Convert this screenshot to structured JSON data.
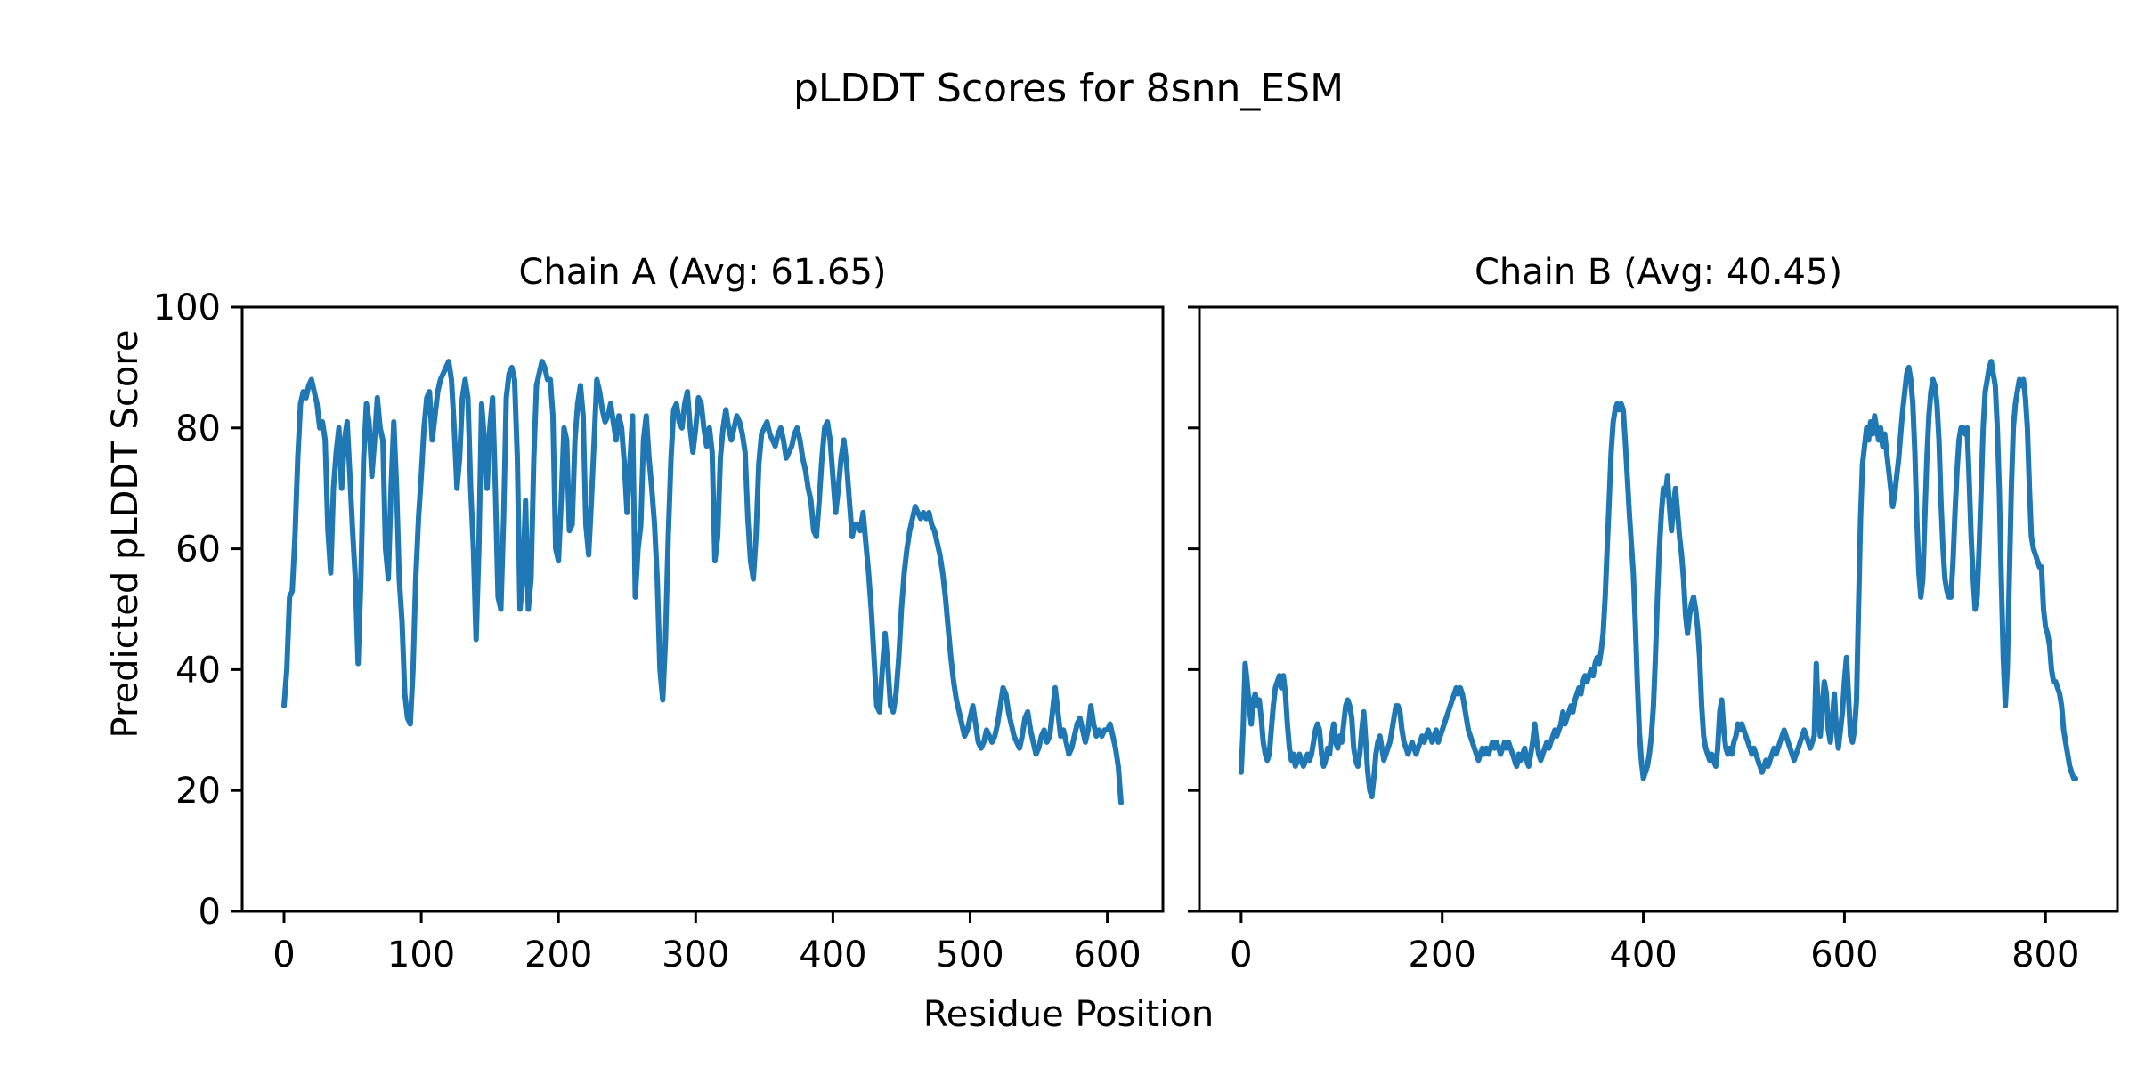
{
  "title": "pLDDT Scores for 8snn_ESM",
  "xlabel": "Residue Position",
  "ylabel": "Predicted pLDDT Score",
  "line_color": "#1f77b4",
  "chart_data": [
    {
      "type": "line",
      "id": "chain-a",
      "title": "Chain A (Avg: 61.65)",
      "series_name": "Chain A",
      "avg": 61.65,
      "xlim": [
        -30.5,
        640.5
      ],
      "ylim": [
        0,
        100
      ],
      "xticks": [
        0,
        100,
        200,
        300,
        400,
        500,
        600
      ],
      "yticks": [
        0,
        20,
        40,
        60,
        80,
        100
      ],
      "show_ytick_labels": true,
      "grid": false,
      "x_start": 0,
      "x_step": 2,
      "values": [
        34,
        40,
        52,
        53,
        62,
        75,
        84,
        86,
        85,
        87,
        88,
        86,
        84,
        80,
        81,
        78,
        63,
        56,
        70,
        76,
        80,
        70,
        78,
        81,
        72,
        63,
        55,
        41,
        55,
        75,
        84,
        81,
        72,
        78,
        85,
        80,
        78,
        60,
        55,
        70,
        81,
        70,
        55,
        48,
        36,
        32,
        31,
        40,
        55,
        65,
        72,
        80,
        85,
        86,
        78,
        82,
        86,
        88,
        89,
        90,
        91,
        88,
        80,
        70,
        75,
        85,
        88,
        85,
        70,
        60,
        45,
        60,
        84,
        78,
        70,
        80,
        85,
        70,
        52,
        50,
        65,
        85,
        89,
        90,
        88,
        75,
        50,
        55,
        68,
        50,
        55,
        75,
        87,
        89,
        91,
        90,
        88,
        88,
        82,
        60,
        58,
        68,
        80,
        78,
        63,
        64,
        78,
        84,
        87,
        82,
        64,
        59,
        68,
        78,
        88,
        86,
        83,
        81,
        82,
        84,
        81,
        78,
        82,
        80,
        74,
        66,
        74,
        82,
        52,
        60,
        64,
        78,
        82,
        75,
        70,
        64,
        55,
        40,
        35,
        45,
        62,
        75,
        83,
        84,
        81,
        80,
        84,
        86,
        80,
        76,
        80,
        85,
        84,
        80,
        77,
        80,
        76,
        58,
        62,
        75,
        80,
        83,
        80,
        78,
        80,
        82,
        81,
        79,
        76,
        65,
        58,
        55,
        62,
        74,
        79,
        80,
        81,
        79,
        78,
        77,
        79,
        80,
        78,
        75,
        76,
        77,
        79,
        80,
        78,
        75,
        73,
        70,
        68,
        63,
        62,
        68,
        75,
        80,
        81,
        78,
        72,
        66,
        70,
        75,
        78,
        74,
        68,
        62,
        64,
        64,
        63,
        66,
        61,
        56,
        50,
        42,
        34,
        33,
        40,
        46,
        41,
        34,
        33,
        36,
        42,
        50,
        56,
        60,
        63,
        65,
        67,
        66,
        65,
        66,
        65,
        66,
        64,
        63,
        61,
        59,
        56,
        52,
        47,
        42,
        38,
        35,
        33,
        31,
        29,
        30,
        32,
        34,
        31,
        28,
        27,
        28,
        30,
        29,
        28,
        29,
        31,
        34,
        37,
        36,
        33,
        31,
        29,
        28,
        27,
        29,
        32,
        33,
        30,
        28,
        26,
        27,
        29,
        30,
        28,
        29,
        33,
        37,
        33,
        29,
        30,
        28,
        26,
        27,
        29,
        31,
        32,
        30,
        28,
        30,
        34,
        31,
        29,
        30,
        29,
        30,
        30,
        31,
        29,
        27,
        24,
        18
      ]
    },
    {
      "type": "line",
      "id": "chain-b",
      "title": "Chain B (Avg: 40.45)",
      "series_name": "Chain B",
      "avg": 40.45,
      "xlim": [
        -41.5,
        871.5
      ],
      "ylim": [
        0,
        100
      ],
      "xticks": [
        0,
        200,
        400,
        600,
        800
      ],
      "yticks": [
        0,
        20,
        40,
        60,
        80,
        100
      ],
      "show_ytick_labels": false,
      "grid": false,
      "x_start": 0,
      "x_step": 2,
      "values": [
        23,
        30,
        41,
        38,
        34,
        31,
        35,
        36,
        34,
        35,
        32,
        28,
        26,
        25,
        26,
        30,
        34,
        37,
        38,
        39,
        37,
        39,
        36,
        31,
        27,
        25,
        26,
        24,
        25,
        26,
        25,
        24,
        25,
        26,
        25,
        26,
        28,
        30,
        31,
        30,
        26,
        24,
        25,
        27,
        26,
        29,
        31,
        28,
        27,
        29,
        28,
        31,
        34,
        35,
        34,
        32,
        27,
        25,
        24,
        26,
        30,
        33,
        28,
        23,
        20,
        19,
        22,
        26,
        28,
        29,
        27,
        25,
        26,
        27,
        28,
        30,
        32,
        34,
        34,
        33,
        30,
        28,
        27,
        26,
        27,
        28,
        27,
        26,
        27,
        28,
        29,
        28,
        29,
        30,
        29,
        28,
        29,
        30,
        28,
        29,
        30,
        31,
        32,
        33,
        34,
        35,
        36,
        37,
        36,
        37,
        36,
        34,
        32,
        30,
        29,
        28,
        27,
        26,
        25,
        26,
        27,
        26,
        27,
        26,
        27,
        28,
        27,
        28,
        27,
        26,
        27,
        28,
        27,
        28,
        27,
        26,
        25,
        24,
        26,
        25,
        26,
        27,
        25,
        24,
        26,
        28,
        31,
        28,
        26,
        25,
        26,
        27,
        28,
        27,
        28,
        29,
        30,
        29,
        30,
        31,
        33,
        31,
        32,
        33,
        34,
        33,
        35,
        36,
        37,
        36,
        38,
        39,
        38,
        39,
        40,
        39,
        41,
        42,
        41,
        43,
        46,
        52,
        60,
        68,
        76,
        81,
        83,
        84,
        83,
        84,
        83,
        78,
        72,
        66,
        61,
        56,
        48,
        38,
        30,
        25,
        22,
        23,
        24,
        26,
        29,
        34,
        42,
        52,
        60,
        66,
        70,
        69,
        72,
        67,
        63,
        67,
        70,
        66,
        62,
        59,
        55,
        49,
        46,
        49,
        51,
        52,
        50,
        47,
        42,
        34,
        29,
        27,
        26,
        25,
        26,
        25,
        24,
        27,
        33,
        35,
        30,
        27,
        26,
        27,
        26,
        28,
        29,
        31,
        30,
        31,
        30,
        29,
        28,
        27,
        26,
        27,
        26,
        25,
        24,
        23,
        24,
        25,
        24,
        25,
        26,
        27,
        26,
        27,
        28,
        29,
        30,
        29,
        28,
        27,
        26,
        25,
        26,
        27,
        28,
        29,
        30,
        29,
        28,
        27,
        28,
        29,
        41,
        33,
        29,
        34,
        38,
        36,
        30,
        28,
        32,
        36,
        30,
        27,
        30,
        33,
        38,
        42,
        36,
        29,
        28,
        30,
        35,
        50,
        65,
        74,
        77,
        80,
        78,
        81,
        79,
        82,
        80,
        78,
        80,
        77,
        79,
        76,
        73,
        70,
        67,
        69,
        72,
        75,
        79,
        83,
        86,
        89,
        90,
        88,
        84,
        76,
        65,
        56,
        52,
        55,
        65,
        75,
        82,
        86,
        88,
        87,
        84,
        78,
        68,
        60,
        55,
        53,
        52,
        52,
        58,
        66,
        73,
        78,
        80,
        80,
        79,
        80,
        72,
        62,
        55,
        50,
        52,
        60,
        70,
        80,
        86,
        88,
        90,
        91,
        89,
        87,
        80,
        70,
        55,
        42,
        34,
        40,
        55,
        70,
        80,
        84,
        86,
        88,
        87,
        88,
        85,
        80,
        70,
        62,
        60,
        59,
        58,
        57,
        57,
        50,
        47,
        46,
        44,
        40,
        38,
        38,
        37,
        36,
        34,
        30,
        28,
        26,
        24,
        23,
        22,
        22
      ]
    }
  ]
}
